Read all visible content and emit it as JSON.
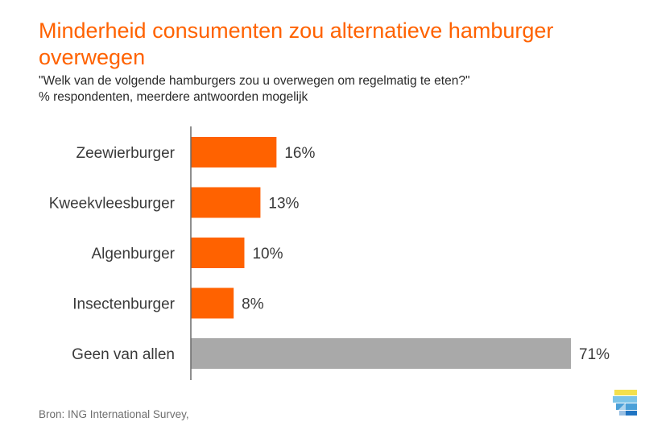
{
  "header": {
    "title": "Minderheid consumenten zou alternatieve hamburger overwegen",
    "question": "\"Welk van de volgende hamburgers zou u overwegen om regelmatig te eten?\"",
    "note": "% respondenten, meerdere antwoorden mogelijk"
  },
  "footer": {
    "source": "Bron: ING International Survey,"
  },
  "colors": {
    "accent": "#ff6200",
    "neutral": "#a9a9a9",
    "axis": "#6a6a6a"
  },
  "chart_data": {
    "type": "bar",
    "orientation": "horizontal",
    "categories": [
      "Zeewierburger",
      "Kweekvleesburger",
      "Algenburger",
      "Insectenburger",
      "Geen van allen"
    ],
    "values": [
      16,
      13,
      10,
      8,
      71
    ],
    "value_labels": [
      "16%",
      "13%",
      "10%",
      "8%",
      "71%"
    ],
    "bar_colors": [
      "#ff6200",
      "#ff6200",
      "#ff6200",
      "#ff6200",
      "#a9a9a9"
    ],
    "unit": "%",
    "xlim": [
      0,
      71
    ],
    "grid": false,
    "legend": "none"
  }
}
